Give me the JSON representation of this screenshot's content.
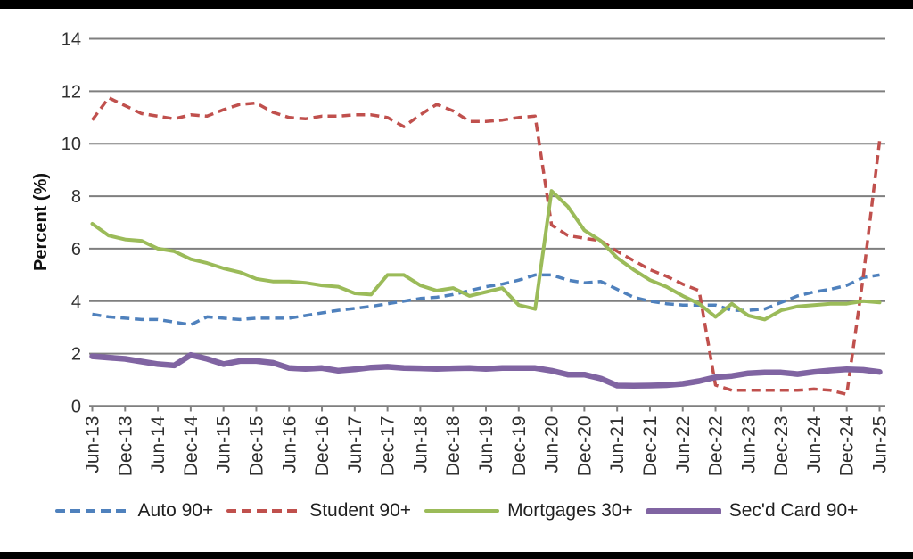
{
  "page": {
    "background": "#ffffff",
    "top_bar_color": "#000000",
    "bottom_bar_color": "#000000"
  },
  "chart_data": {
    "type": "line",
    "title": "",
    "xlabel": "",
    "ylabel": "Percent (%)",
    "ylim": [
      0,
      14
    ],
    "y_ticks": [
      0,
      2,
      4,
      6,
      8,
      10,
      12,
      14
    ],
    "grid": "horizontal",
    "legend_position": "bottom",
    "x_tick_labels": [
      "Jun-13",
      "Dec-13",
      "Jun-14",
      "Dec-14",
      "Jun-15",
      "Dec-15",
      "Jun-16",
      "Dec-16",
      "Jun-17",
      "Dec-17",
      "Jun-18",
      "Dec-18",
      "Jun-19",
      "Dec-19",
      "Jun-20",
      "Dec-20",
      "Jun-21",
      "Dec-21",
      "Jun-22",
      "Dec-22",
      "Jun-23",
      "Dec-23",
      "Jun-24",
      "Dec-24",
      "Jun-25"
    ],
    "categories": [
      "Jun-13",
      "Sep-13",
      "Dec-13",
      "Mar-14",
      "Jun-14",
      "Sep-14",
      "Dec-14",
      "Mar-15",
      "Jun-15",
      "Sep-15",
      "Dec-15",
      "Mar-16",
      "Jun-16",
      "Sep-16",
      "Dec-16",
      "Mar-17",
      "Jun-17",
      "Sep-17",
      "Dec-17",
      "Mar-18",
      "Jun-18",
      "Sep-18",
      "Dec-18",
      "Mar-19",
      "Jun-19",
      "Sep-19",
      "Dec-19",
      "Mar-20",
      "Jun-20",
      "Sep-20",
      "Dec-20",
      "Mar-21",
      "Jun-21",
      "Sep-21",
      "Dec-21",
      "Mar-22",
      "Jun-22",
      "Sep-22",
      "Dec-22",
      "Mar-23",
      "Jun-23",
      "Sep-23",
      "Dec-23",
      "Mar-24",
      "Jun-24",
      "Sep-24",
      "Dec-24",
      "Mar-25",
      "Jun-25"
    ],
    "series": [
      {
        "name": "Auto 90+",
        "color": "#4F81BD",
        "style": "dashed",
        "width": 3.5,
        "values": [
          3.5,
          3.4,
          3.35,
          3.3,
          3.3,
          3.2,
          3.1,
          3.4,
          3.35,
          3.3,
          3.35,
          3.35,
          3.35,
          3.45,
          3.55,
          3.65,
          3.72,
          3.8,
          3.9,
          4.0,
          4.1,
          4.15,
          4.25,
          4.4,
          4.55,
          4.65,
          4.8,
          5.0,
          5.0,
          4.8,
          4.7,
          4.75,
          4.45,
          4.15,
          4.0,
          3.9,
          3.85,
          3.85,
          3.85,
          3.65,
          3.65,
          3.7,
          3.95,
          4.2,
          4.35,
          4.45,
          4.6,
          4.9,
          5.0
        ]
      },
      {
        "name": "Student 90+",
        "color": "#C0504D",
        "style": "dashed",
        "width": 3.5,
        "values": [
          10.9,
          11.75,
          11.45,
          11.15,
          11.05,
          10.95,
          11.1,
          11.05,
          11.3,
          11.5,
          11.55,
          11.2,
          11.0,
          10.95,
          11.05,
          11.05,
          11.1,
          11.1,
          11.0,
          10.65,
          11.1,
          11.5,
          11.25,
          10.85,
          10.85,
          10.9,
          11.0,
          11.05,
          6.9,
          6.5,
          6.4,
          6.3,
          5.9,
          5.55,
          5.2,
          4.95,
          4.65,
          4.4,
          0.8,
          0.6,
          0.6,
          0.6,
          0.6,
          0.6,
          0.65,
          0.6,
          0.45,
          4.9,
          10.1
        ]
      },
      {
        "name": "Mortgages 30+",
        "color": "#9BBB59",
        "style": "solid",
        "width": 4,
        "values": [
          6.95,
          6.5,
          6.35,
          6.3,
          6.0,
          5.9,
          5.6,
          5.45,
          5.25,
          5.1,
          4.85,
          4.75,
          4.75,
          4.7,
          4.6,
          4.55,
          4.3,
          4.25,
          5.0,
          5.0,
          4.6,
          4.4,
          4.5,
          4.2,
          4.35,
          4.5,
          3.85,
          3.7,
          8.2,
          7.6,
          6.7,
          6.3,
          5.65,
          5.2,
          4.8,
          4.55,
          4.2,
          3.9,
          3.4,
          3.9,
          3.45,
          3.3,
          3.65,
          3.8,
          3.85,
          3.9,
          3.9,
          4.0,
          3.95
        ]
      },
      {
        "name": "Sec'd Card 90+",
        "color": "#8064A2",
        "style": "solid",
        "width": 6.5,
        "values": [
          1.9,
          1.85,
          1.8,
          1.7,
          1.6,
          1.55,
          1.95,
          1.8,
          1.6,
          1.72,
          1.72,
          1.65,
          1.45,
          1.42,
          1.45,
          1.35,
          1.4,
          1.47,
          1.5,
          1.45,
          1.44,
          1.42,
          1.44,
          1.45,
          1.42,
          1.45,
          1.45,
          1.45,
          1.35,
          1.2,
          1.2,
          1.05,
          0.78,
          0.77,
          0.78,
          0.8,
          0.85,
          0.95,
          1.1,
          1.15,
          1.25,
          1.28,
          1.28,
          1.22,
          1.3,
          1.36,
          1.4,
          1.38,
          1.3
        ]
      }
    ]
  }
}
